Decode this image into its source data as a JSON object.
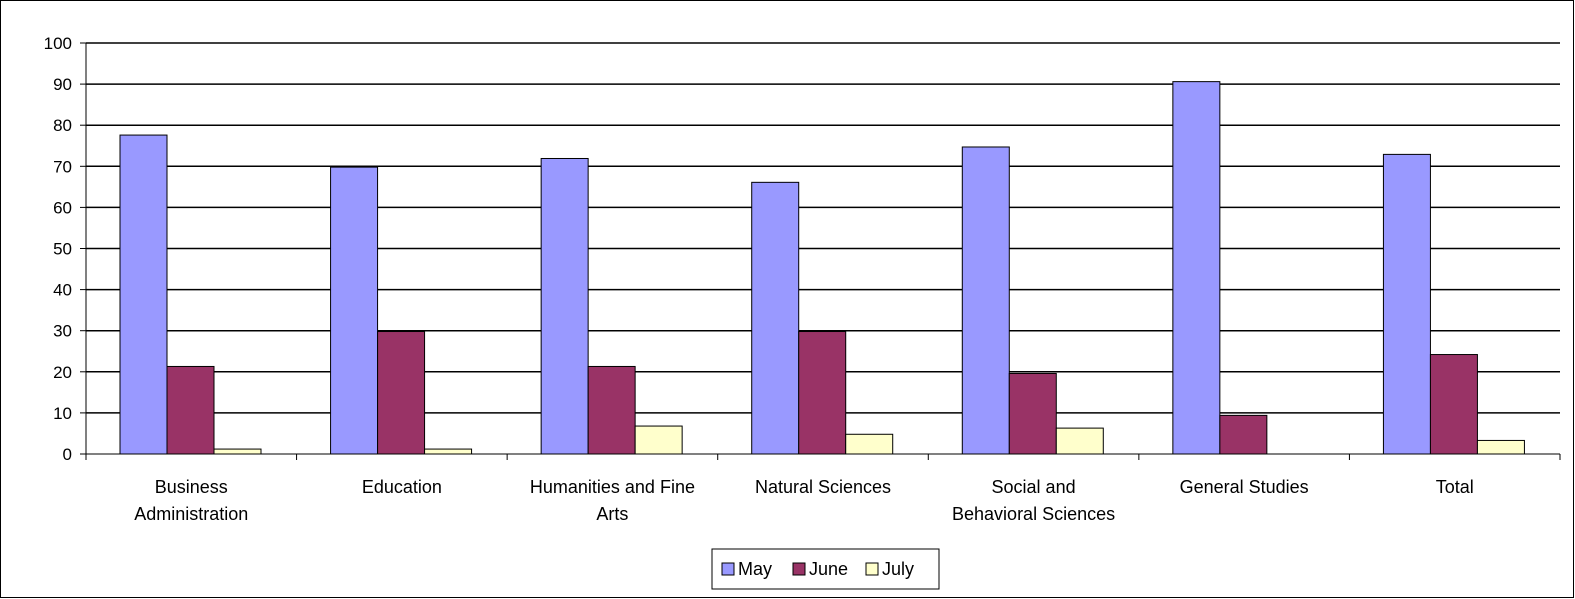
{
  "chart_data": {
    "type": "bar",
    "title": "",
    "xlabel": "",
    "ylabel": "",
    "ylim": [
      0,
      100
    ],
    "yticks": [
      0,
      10,
      20,
      30,
      40,
      50,
      60,
      70,
      80,
      90,
      100
    ],
    "grid": true,
    "legend_position": "bottom",
    "categories": [
      [
        "Business",
        "Administration"
      ],
      [
        "Education"
      ],
      [
        "Humanities and Fine",
        "Arts"
      ],
      [
        "Natural Sciences"
      ],
      [
        "Social and",
        "Behavioral Sciences"
      ],
      [
        "General Studies"
      ],
      [
        "Total"
      ]
    ],
    "series": [
      {
        "name": "May",
        "color": "#9999ff",
        "values": [
          77.6,
          69.8,
          71.9,
          66.1,
          74.7,
          90.6,
          72.9
        ]
      },
      {
        "name": "June",
        "color": "#993366",
        "values": [
          21.3,
          29.8,
          21.3,
          29.8,
          19.6,
          9.4,
          24.2
        ]
      },
      {
        "name": "July",
        "color": "#ffffcc",
        "values": [
          1.2,
          1.2,
          6.8,
          4.8,
          6.3,
          0,
          3.3
        ]
      }
    ]
  }
}
